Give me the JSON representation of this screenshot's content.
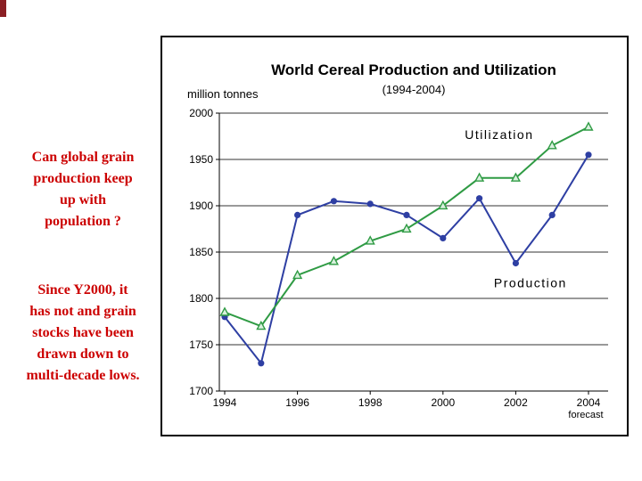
{
  "slide": {
    "question": "Can global grain\nproduction keep\nup with\npopulation ?",
    "statement": "Since Y2000, it\nhas not and grain\nstocks have been\ndrawn down to\nmulti-decade lows.",
    "text_color": "#cc0000",
    "corner_mark_color": "#8b1f24",
    "background_color": "#ffffff"
  },
  "chart_data": {
    "type": "line",
    "title": "World Cereal Production and Utilization",
    "subtitle": "(1994-2004)",
    "y_axis_label": "million tonnes",
    "x": [
      1994,
      1995,
      1996,
      1997,
      1998,
      1999,
      2000,
      2001,
      2002,
      2003,
      2004
    ],
    "x_tick_labels": [
      "1994",
      "1996",
      "1998",
      "2000",
      "2002",
      "2004"
    ],
    "x_tick_values": [
      1994,
      1996,
      1998,
      2000,
      2002,
      2004
    ],
    "last_x_note": "forecast",
    "ylim": [
      1700,
      2000
    ],
    "y_ticks": [
      2000,
      1950,
      1900,
      1850,
      1800,
      1750,
      1700
    ],
    "grid": "horizontal",
    "legend": "inline-labels",
    "series": [
      {
        "name": "Production",
        "color": "#2e3fa3",
        "marker": "circle",
        "values": [
          1780,
          1730,
          1890,
          1905,
          1902,
          1890,
          1865,
          1908,
          1838,
          1890,
          1955
        ],
        "label_x": 2001.4,
        "label_y": 1812
      },
      {
        "name": "Utilization",
        "color": "#2f9b44",
        "marker": "triangle-up",
        "marker_fill": "#d9f0de",
        "values": [
          1785,
          1770,
          1825,
          1840,
          1862,
          1875,
          1900,
          1930,
          1930,
          1965,
          1985
        ],
        "label_x": 2000.6,
        "label_y": 1972
      }
    ]
  }
}
